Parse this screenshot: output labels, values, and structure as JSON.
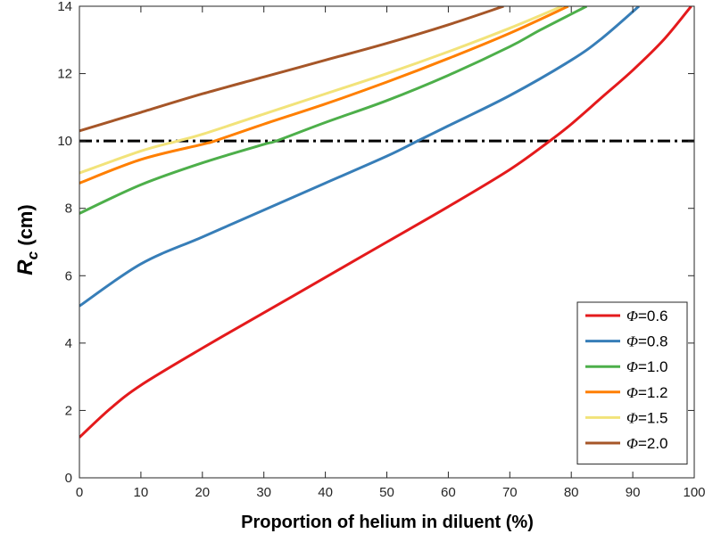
{
  "chart_data": {
    "type": "line",
    "xlabel": "Proportion of helium in diluent (%)",
    "ylabel_main": "R",
    "ylabel_sub": "c",
    "ylabel_unit": " (cm)",
    "xlim": [
      0,
      100
    ],
    "ylim": [
      0,
      14
    ],
    "xticks": [
      0,
      10,
      20,
      30,
      40,
      50,
      60,
      70,
      80,
      90,
      100
    ],
    "yticks": [
      0,
      2,
      4,
      6,
      8,
      10,
      12,
      14
    ],
    "grid": false,
    "legend_position": "bottom-right",
    "reference_line": {
      "y": 10,
      "style": "dash-dot",
      "color": "#000000"
    },
    "series": [
      {
        "name_symbol": "Φ",
        "name_value": "=0.6",
        "color": "#e41a1c",
        "x": [
          0,
          5,
          10,
          20,
          30,
          40,
          50,
          60,
          70,
          76.5,
          80,
          85,
          90,
          95,
          99.5
        ],
        "y": [
          1.2,
          2.05,
          2.75,
          3.85,
          4.9,
          5.95,
          7.0,
          8.05,
          9.15,
          10.0,
          10.5,
          11.3,
          12.1,
          13.0,
          14.0
        ]
      },
      {
        "name_symbol": "Φ",
        "name_value": "=0.8",
        "color": "#377eb8",
        "x": [
          0,
          10,
          20,
          30,
          40,
          50,
          55,
          60,
          70,
          80,
          85,
          91
        ],
        "y": [
          5.1,
          6.35,
          7.15,
          7.95,
          8.75,
          9.55,
          10.0,
          10.45,
          11.35,
          12.4,
          13.05,
          14.0
        ]
      },
      {
        "name_symbol": "Φ",
        "name_value": "=1.0",
        "color": "#4daf4a",
        "x": [
          0,
          10,
          20,
          30,
          32,
          40,
          50,
          60,
          70,
          75,
          82.5
        ],
        "y": [
          7.85,
          8.7,
          9.35,
          9.9,
          10.0,
          10.55,
          11.2,
          11.95,
          12.8,
          13.3,
          14.0
        ]
      },
      {
        "name_symbol": "Φ",
        "name_value": "=1.2",
        "color": "#ff7f00",
        "x": [
          0,
          10,
          20,
          22,
          30,
          40,
          50,
          60,
          70,
          79.5
        ],
        "y": [
          8.75,
          9.45,
          9.9,
          10.0,
          10.5,
          11.1,
          11.75,
          12.45,
          13.2,
          14.0
        ]
      },
      {
        "name_symbol": "Φ",
        "name_value": "=1.5",
        "color": "#f2e37a",
        "x": [
          0,
          10,
          16,
          20,
          30,
          40,
          50,
          60,
          70,
          78.5
        ],
        "y": [
          9.05,
          9.7,
          10.0,
          10.2,
          10.8,
          11.4,
          12.0,
          12.65,
          13.35,
          14.0
        ]
      },
      {
        "name_symbol": "Φ",
        "name_value": "=2.0",
        "color": "#a65628",
        "x": [
          0,
          10,
          20,
          30,
          40,
          50,
          60,
          69
        ],
        "y": [
          10.3,
          10.85,
          11.4,
          11.9,
          12.4,
          12.9,
          13.45,
          14.0
        ]
      }
    ]
  }
}
